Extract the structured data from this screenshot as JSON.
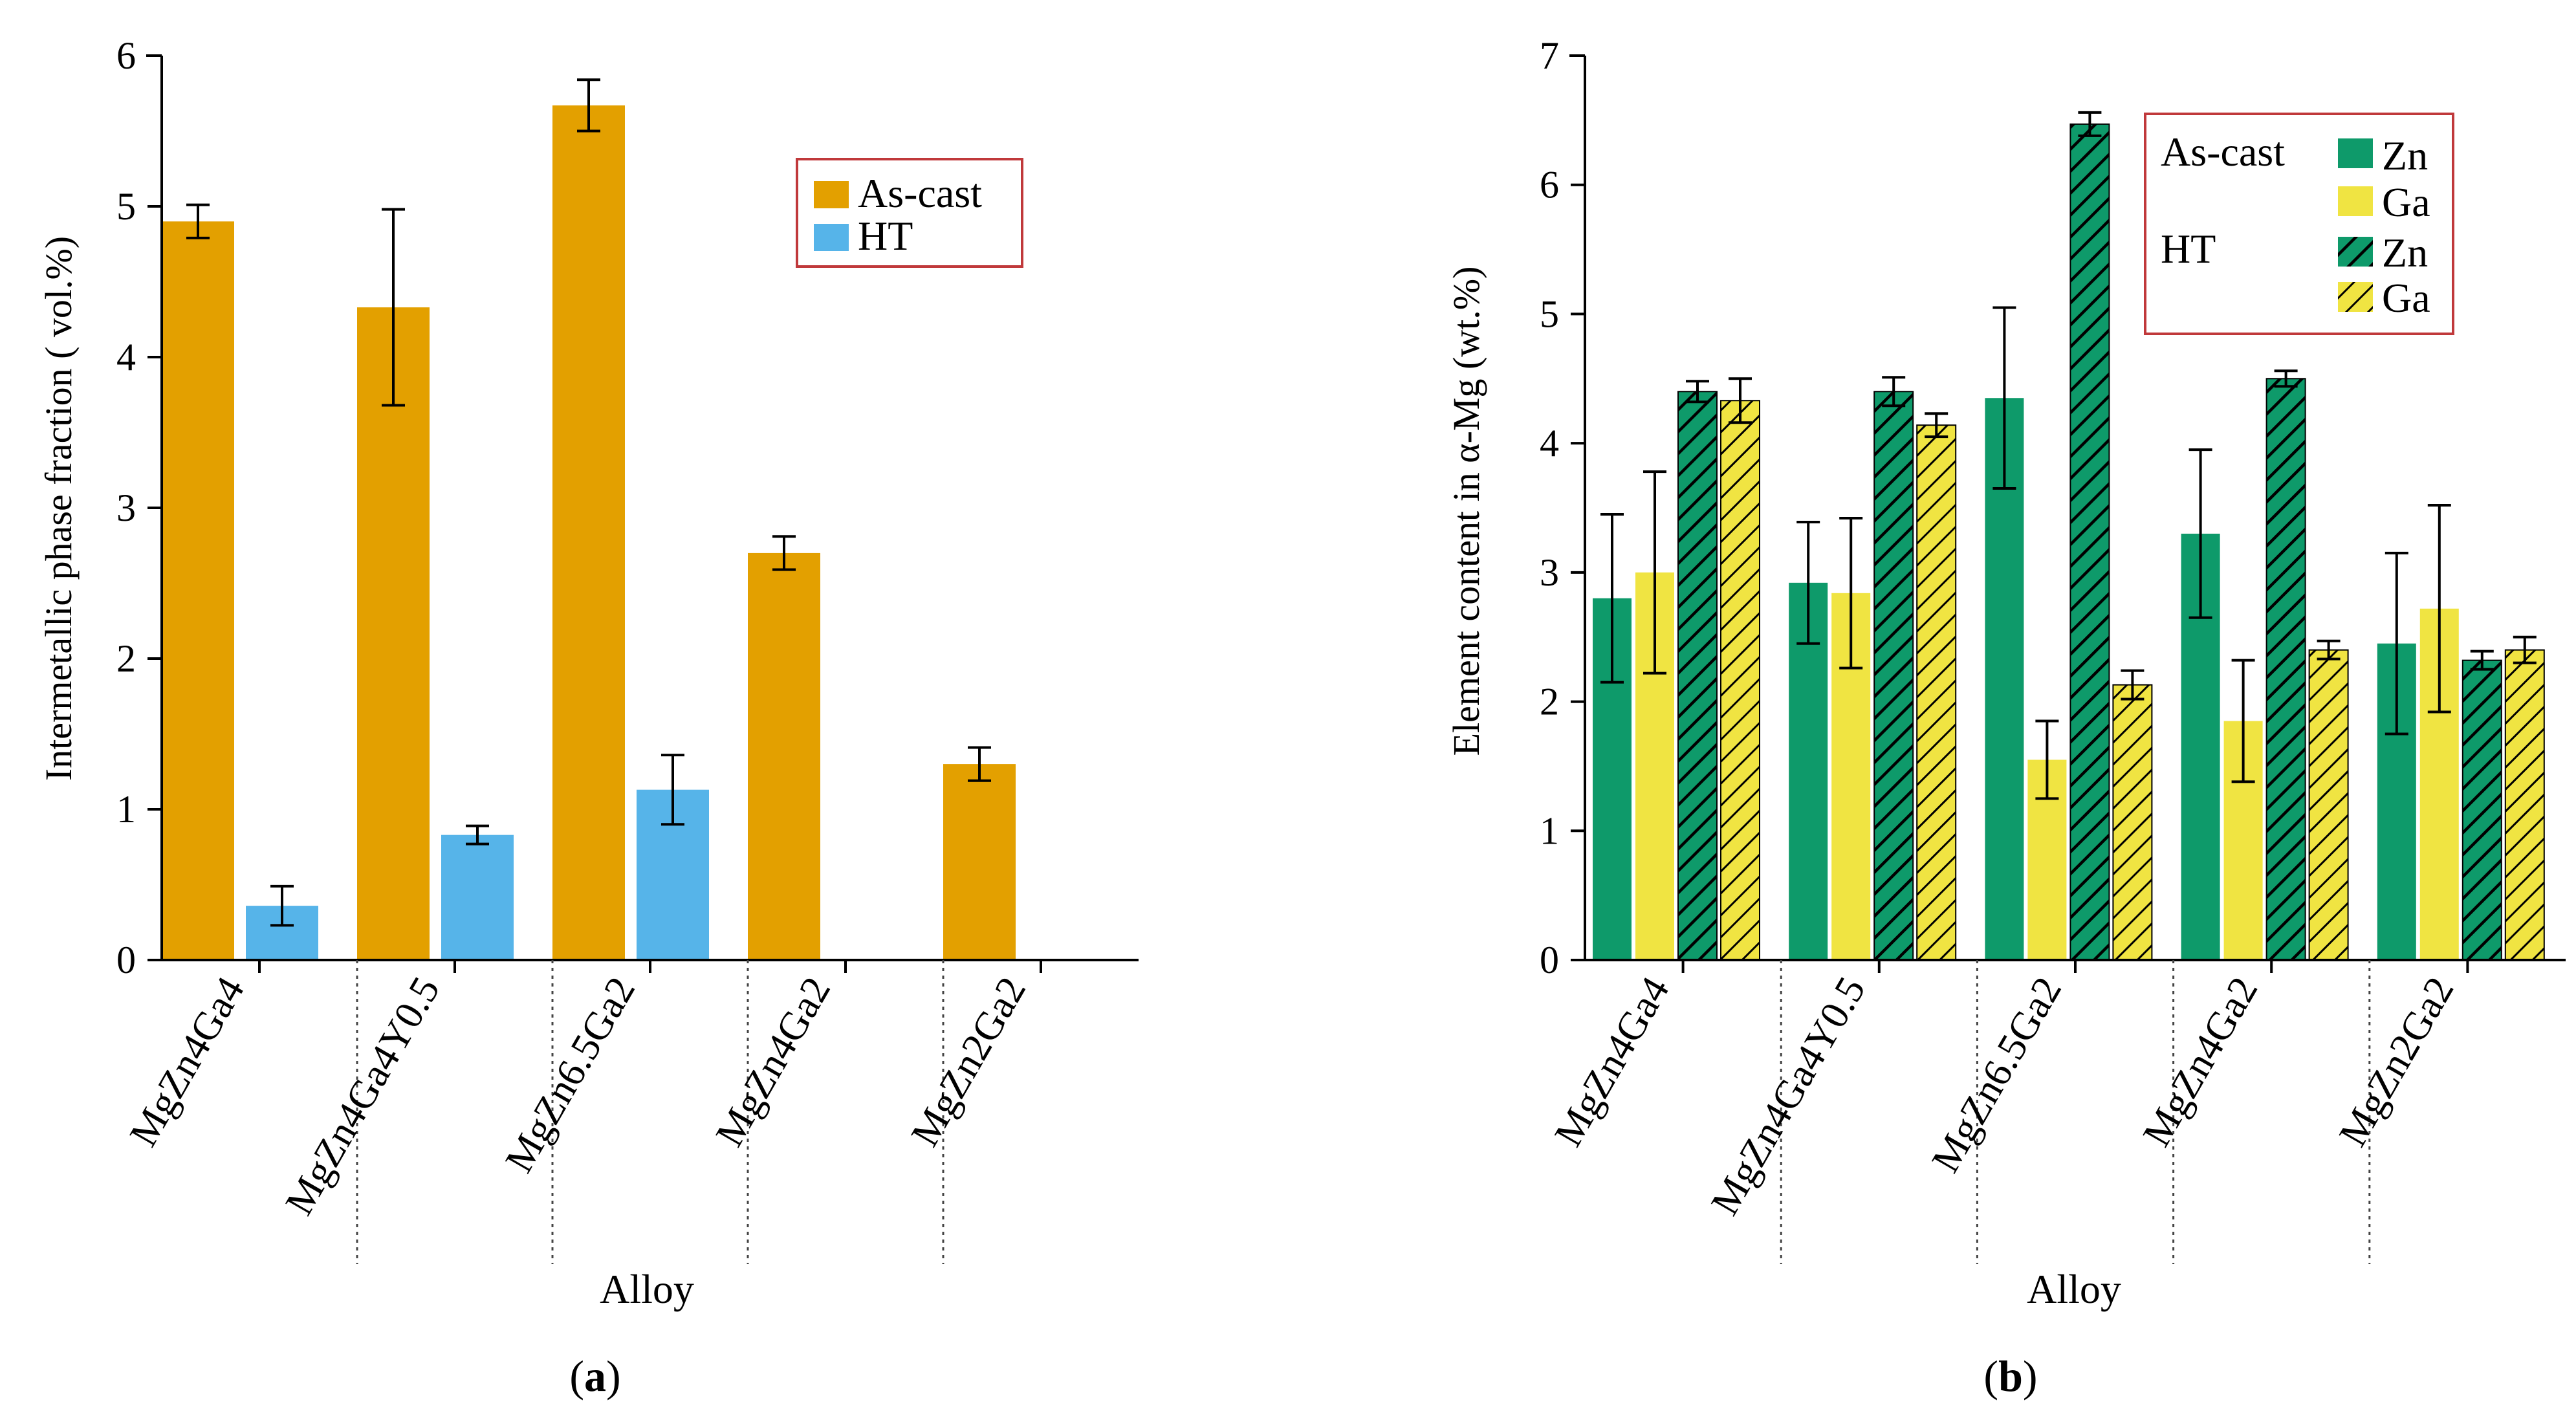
{
  "panels": [
    {
      "id": "a",
      "caption_prefix": "(",
      "caption_letter": "a",
      "caption_suffix": ")"
    },
    {
      "id": "b",
      "caption_prefix": "(",
      "caption_letter": "b",
      "caption_suffix": ")"
    }
  ],
  "colors": {
    "as_cast_a": "#E3A000",
    "ht_a": "#56B4E9",
    "zn": "#0E9A6A",
    "ga": "#F0E442",
    "legend_border": "#C0393B",
    "hatch": "#000000"
  },
  "chart_data": [
    {
      "type": "bar",
      "xlabel": "Alloy",
      "ylabel": "Intermetallic phase fraction ( vol.%)",
      "ylim": [
        0,
        6
      ],
      "yticks": [
        0,
        1,
        2,
        3,
        4,
        5,
        6
      ],
      "categories": [
        "MgZn4Ga4",
        "MgZn4Ga4Y0.5",
        "MgZn6.5Ga2",
        "MgZn4Ga2",
        "MgZn2Ga2"
      ],
      "legend_position": "top-right",
      "series": [
        {
          "name": "As-cast",
          "values": [
            4.9,
            4.33,
            5.67,
            2.7,
            1.3
          ],
          "errors": [
            0.11,
            0.65,
            0.17,
            0.11,
            0.11
          ]
        },
        {
          "name": "HT",
          "values": [
            0.36,
            0.83,
            1.13,
            null,
            null
          ],
          "errors": [
            0.13,
            0.06,
            0.23,
            null,
            null
          ]
        }
      ]
    },
    {
      "type": "bar",
      "xlabel": "Alloy",
      "ylabel": "Element content in α-Mg (wt.%)",
      "ylim": [
        0,
        7
      ],
      "yticks": [
        0,
        1,
        2,
        3,
        4,
        5,
        6,
        7
      ],
      "categories": [
        "MgZn4Ga4",
        "MgZn4Ga4Y0.5",
        "MgZn6.5Ga2",
        "MgZn4Ga2",
        "MgZn2Ga2"
      ],
      "legend_position": "top-right",
      "legend_groups": [
        {
          "label": "As-cast",
          "items": [
            "Zn",
            "Ga"
          ]
        },
        {
          "label": "HT",
          "items": [
            "Zn",
            "Ga"
          ]
        }
      ],
      "series": [
        {
          "name": "Zn",
          "group": "As-cast",
          "hatched": false,
          "values": [
            2.8,
            2.92,
            4.35,
            3.3,
            2.45
          ],
          "errors": [
            0.65,
            0.47,
            0.7,
            0.65,
            0.7
          ]
        },
        {
          "name": "Ga",
          "group": "As-cast",
          "hatched": false,
          "values": [
            3.0,
            2.84,
            1.55,
            1.85,
            2.72
          ],
          "errors": [
            0.78,
            0.58,
            0.3,
            0.47,
            0.8
          ]
        },
        {
          "name": "Zn",
          "group": "HT",
          "hatched": true,
          "values": [
            4.4,
            4.4,
            6.47,
            4.5,
            2.32
          ],
          "errors": [
            0.08,
            0.11,
            0.09,
            0.06,
            0.07
          ]
        },
        {
          "name": "Ga",
          "group": "HT",
          "hatched": true,
          "values": [
            4.33,
            4.14,
            2.13,
            2.4,
            2.4
          ],
          "errors": [
            0.17,
            0.09,
            0.11,
            0.07,
            0.1
          ]
        }
      ]
    }
  ]
}
